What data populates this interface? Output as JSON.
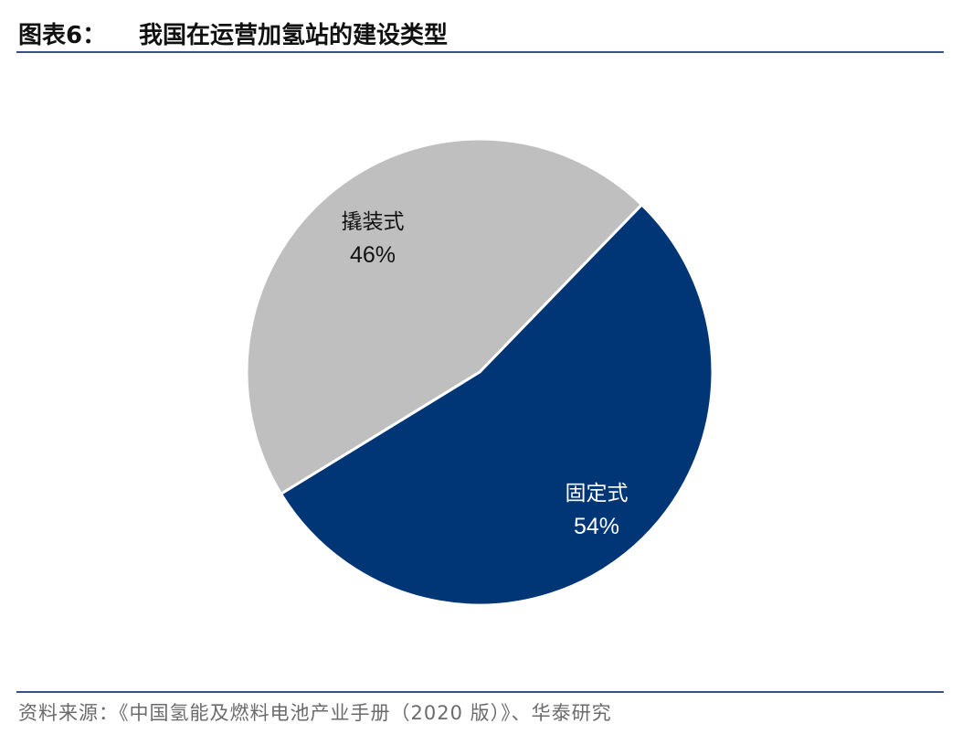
{
  "figure": {
    "label": "图表6：",
    "title": "我国在运营加氢站的建设类型"
  },
  "chart_data": {
    "type": "pie",
    "slices": [
      {
        "label": "撬装式",
        "value": 46,
        "value_text": "46%",
        "color": "#bfbfbf",
        "text_color": "#111111"
      },
      {
        "label": "固定式",
        "value": 54,
        "value_text": "54%",
        "color": "#003576",
        "text_color": "#ffffff"
      }
    ],
    "legend": "none"
  },
  "source": "资料来源：《中国氢能及燃料电池产业手册（2020 版）》、华泰研究"
}
